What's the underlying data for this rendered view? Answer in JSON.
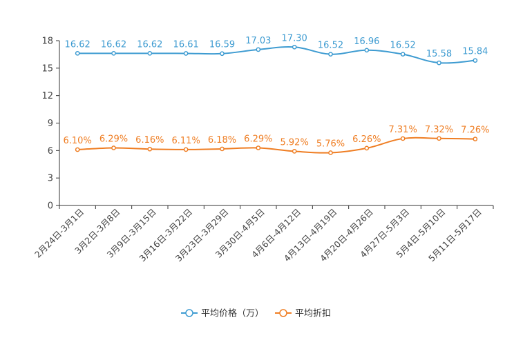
{
  "chart_data": {
    "type": "line",
    "title": "",
    "xlabel": "",
    "ylabel": "",
    "ylim": [
      0,
      18
    ],
    "yticks": [
      0,
      3,
      6,
      9,
      12,
      15,
      18
    ],
    "grid": false,
    "legend_position": "bottom-center",
    "categories": [
      "2月24日-3月1日",
      "3月2日-3月8日",
      "3月9日-3月15日",
      "3月16日-3月22日",
      "3月23日-3月29日",
      "3月30日-4月5日",
      "4月6日-4月12日",
      "4月13日-4月19日",
      "4月20日-4月26日",
      "4月27日-5月3日",
      "5月4日-5月10日",
      "5月11日-5月17日"
    ],
    "series": [
      {
        "name": "平均价格（万）",
        "color": "#3d9bd1",
        "values": [
          16.62,
          16.62,
          16.62,
          16.61,
          16.59,
          17.03,
          17.3,
          16.52,
          16.96,
          16.52,
          15.58,
          15.84
        ],
        "labels": [
          "16.62",
          "16.62",
          "16.62",
          "16.61",
          "16.59",
          "17.03",
          "17.30",
          "16.52",
          "16.96",
          "16.52",
          "15.58",
          "15.84"
        ]
      },
      {
        "name": "平均折扣",
        "color": "#ef7d22",
        "values": [
          6.1,
          6.29,
          6.16,
          6.11,
          6.18,
          6.29,
          5.92,
          5.76,
          6.26,
          7.31,
          7.32,
          7.26
        ],
        "labels": [
          "6.10%",
          "6.29%",
          "6.16%",
          "6.11%",
          "6.18%",
          "6.29%",
          "5.92%",
          "5.76%",
          "6.26%",
          "7.31%",
          "7.32%",
          "7.26%"
        ]
      }
    ]
  }
}
